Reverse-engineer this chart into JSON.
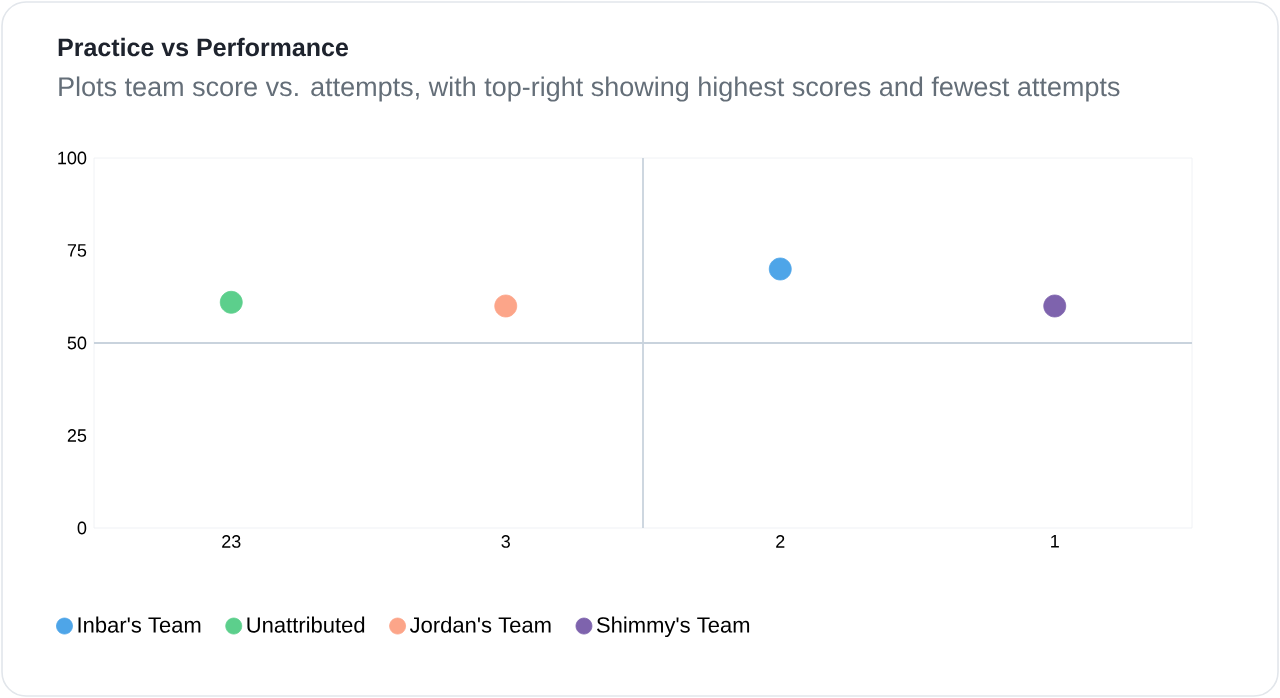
{
  "chart_data": {
    "type": "scatter",
    "title": "Practice vs Performance",
    "subtitle": "Plots team score vs. attempts, with top-right showing highest scores and fewest attempts",
    "categories": [
      "23",
      "3",
      "2",
      "1"
    ],
    "ylim": [
      0,
      100
    ],
    "yticks": [
      0,
      25,
      50,
      75,
      100
    ],
    "series": [
      {
        "name": "Inbar's Team",
        "color": "#4ea5e8",
        "x": [
          "2"
        ],
        "values": [
          70
        ]
      },
      {
        "name": "Unattributed",
        "color": "#5ccf8c",
        "x": [
          "23"
        ],
        "values": [
          61
        ]
      },
      {
        "name": "Jordan's Team",
        "color": "#fca589",
        "x": [
          "3"
        ],
        "values": [
          60
        ]
      },
      {
        "name": "Shimmy's Team",
        "color": "#7e63ad",
        "x": [
          "1"
        ],
        "values": [
          60
        ]
      }
    ],
    "ref_lines": [
      {
        "axis": "y",
        "value": 50,
        "color": "#c9d3dd"
      }
    ],
    "marker": "circle",
    "grid": false,
    "legend": "bottom left"
  }
}
